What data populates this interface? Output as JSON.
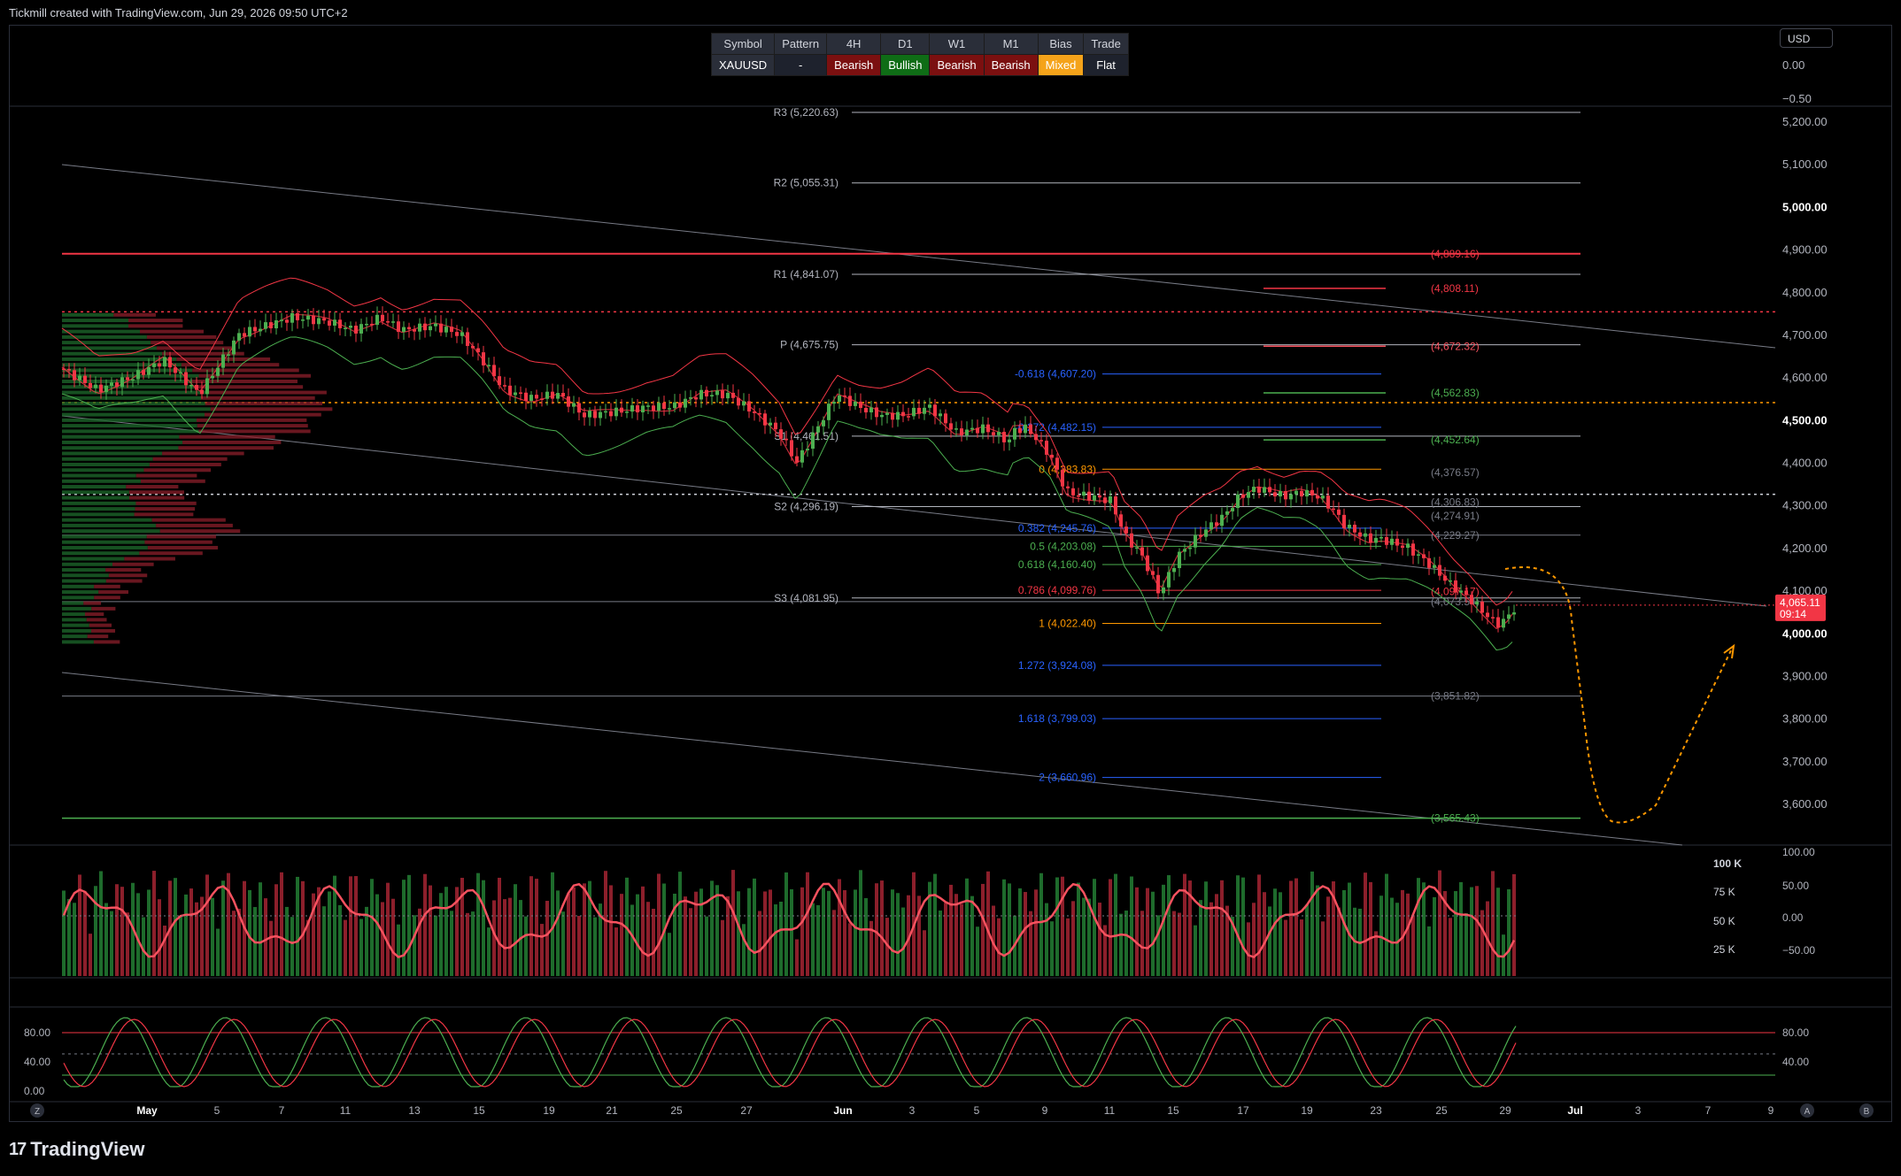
{
  "header": {
    "credit": "Tickmill created with TradingView.com, Jun 29, 2026 09:50 UTC+2"
  },
  "currency_button": "USD",
  "signal_table": {
    "headers": [
      "Symbol",
      "Pattern",
      "4H",
      "D1",
      "W1",
      "M1",
      "Bias",
      "Trade"
    ],
    "row": [
      {
        "text": "XAUUSD",
        "bg": "#2a2e39"
      },
      {
        "text": "-",
        "bg": "#1e222d"
      },
      {
        "text": "Bearish",
        "bg": "#7b1010"
      },
      {
        "text": "Bullish",
        "bg": "#0f6d16"
      },
      {
        "text": "Bearish",
        "bg": "#7b1010"
      },
      {
        "text": "Bearish",
        "bg": "#7b1010"
      },
      {
        "text": "Mixed",
        "bg": "#f5a31a"
      },
      {
        "text": "Flat",
        "bg": "#1e222d"
      }
    ]
  },
  "chart_data": {
    "type": "candlestick",
    "symbol": "XAUUSD",
    "last_price": "4,065.11",
    "countdown": "09:14",
    "price_axis": {
      "ticks": [
        "5,200.00",
        "5,100.00",
        "5,000.00",
        "4,900.00",
        "4,800.00",
        "4,700.00",
        "4,600.00",
        "4,500.00",
        "4,400.00",
        "4,300.00",
        "4,200.00",
        "4,100.00",
        "4,000.00",
        "3,900.00",
        "3,800.00",
        "3,700.00",
        "3,600.00"
      ],
      "bold_ticks": [
        "5,000.00",
        "4,500.00",
        "4,000.00"
      ],
      "range": [
        3570,
        5240
      ]
    },
    "top_axis_ticks": [
      "0.00",
      "−0.50"
    ],
    "time_axis": [
      "May",
      "5",
      "7",
      "11",
      "13",
      "15",
      "19",
      "21",
      "25",
      "27",
      "Jun",
      "3",
      "5",
      "9",
      "11",
      "15",
      "17",
      "19",
      "23",
      "25",
      "29",
      "Jul",
      "3",
      "7",
      "9"
    ],
    "pivots": [
      {
        "label": "R3 (5,220.63)",
        "value": 5220.63
      },
      {
        "label": "R2 (5,055.31)",
        "value": 5055.31
      },
      {
        "label": "R1 (4,841.07)",
        "value": 4841.07
      },
      {
        "label": "P (4,675.75)",
        "value": 4675.75
      },
      {
        "label": "S1 (4,461.51)",
        "value": 4461.51
      },
      {
        "label": "S2 (4,296.19)",
        "value": 4296.19
      },
      {
        "label": "S3 (4,081.95)",
        "value": 4081.95
      }
    ],
    "fibonacci": [
      {
        "label": "-0.618 (4,607.20)",
        "value": 4607.2,
        "color": "#2962ff"
      },
      {
        "label": "-0.272 (4,482.15)",
        "value": 4482.15,
        "color": "#2962ff"
      },
      {
        "label": "0 (4,383.83)",
        "value": 4383.83,
        "color": "#ff9800"
      },
      {
        "label": "0.382 (4,245.76)",
        "value": 4245.76,
        "color": "#2962ff"
      },
      {
        "label": "0.5 (4,203.08)",
        "value": 4203.08,
        "color": "#4caf50"
      },
      {
        "label": "0.618 (4,160.40)",
        "value": 4160.4,
        "color": "#4caf50"
      },
      {
        "label": "0.786 (4,099.76)",
        "value": 4099.76,
        "color": "#f23645"
      },
      {
        "label": "1 (4,022.40)",
        "value": 4022.4,
        "color": "#ff9800"
      },
      {
        "label": "1.272 (3,924.08)",
        "value": 3924.08,
        "color": "#2962ff"
      },
      {
        "label": "1.618 (3,799.03)",
        "value": 3799.03,
        "color": "#2962ff"
      },
      {
        "label": "2 (3,660.96)",
        "value": 3660.96,
        "color": "#2962ff"
      }
    ],
    "right_levels": [
      {
        "label": "(4,889.16)",
        "value": 4889.16,
        "color": "#f23645"
      },
      {
        "label": "(4,808.11)",
        "value": 4808.11,
        "color": "#f23645"
      },
      {
        "label": "(4,672.32)",
        "value": 4672.32,
        "color": "#f7525f"
      },
      {
        "label": "(4,562.83)",
        "value": 4562.83,
        "color": "#4caf50"
      },
      {
        "label": "(4,452.64)",
        "value": 4452.64,
        "color": "#4caf50"
      },
      {
        "label": "(4,376.57)",
        "value": 4376.57,
        "color": "#787b86"
      },
      {
        "label": "(4,306.83)",
        "value": 4306.83,
        "color": "#787b86"
      },
      {
        "label": "(4,274.91)",
        "value": 4274.91,
        "color": "#787b86"
      },
      {
        "label": "(4,229.27)",
        "value": 4229.27,
        "color": "#787b86"
      },
      {
        "label": "(4,097.17)",
        "value": 4097.17,
        "color": "#f23645"
      },
      {
        "label": "(4,073.54)",
        "value": 4073.54,
        "color": "#787b86"
      },
      {
        "label": "(3,851.82)",
        "value": 3851.82,
        "color": "#787b86"
      },
      {
        "label": "(3,565.43)",
        "value": 3565.43,
        "color": "#4caf50"
      }
    ],
    "volume_axis": [
      "100 K",
      "75 K",
      "50 K",
      "25 K"
    ],
    "rsi_axis": [
      "100.00",
      "50.00",
      "0.00",
      "−50.00"
    ],
    "stoch_axis_left": [
      "80.00",
      "40.00",
      "0.00"
    ],
    "stoch_axis_right": [
      "80.00",
      "40.00"
    ],
    "scale_buttons": [
      "Z",
      "A",
      "B"
    ]
  },
  "footer": {
    "brand": "TradingView"
  }
}
